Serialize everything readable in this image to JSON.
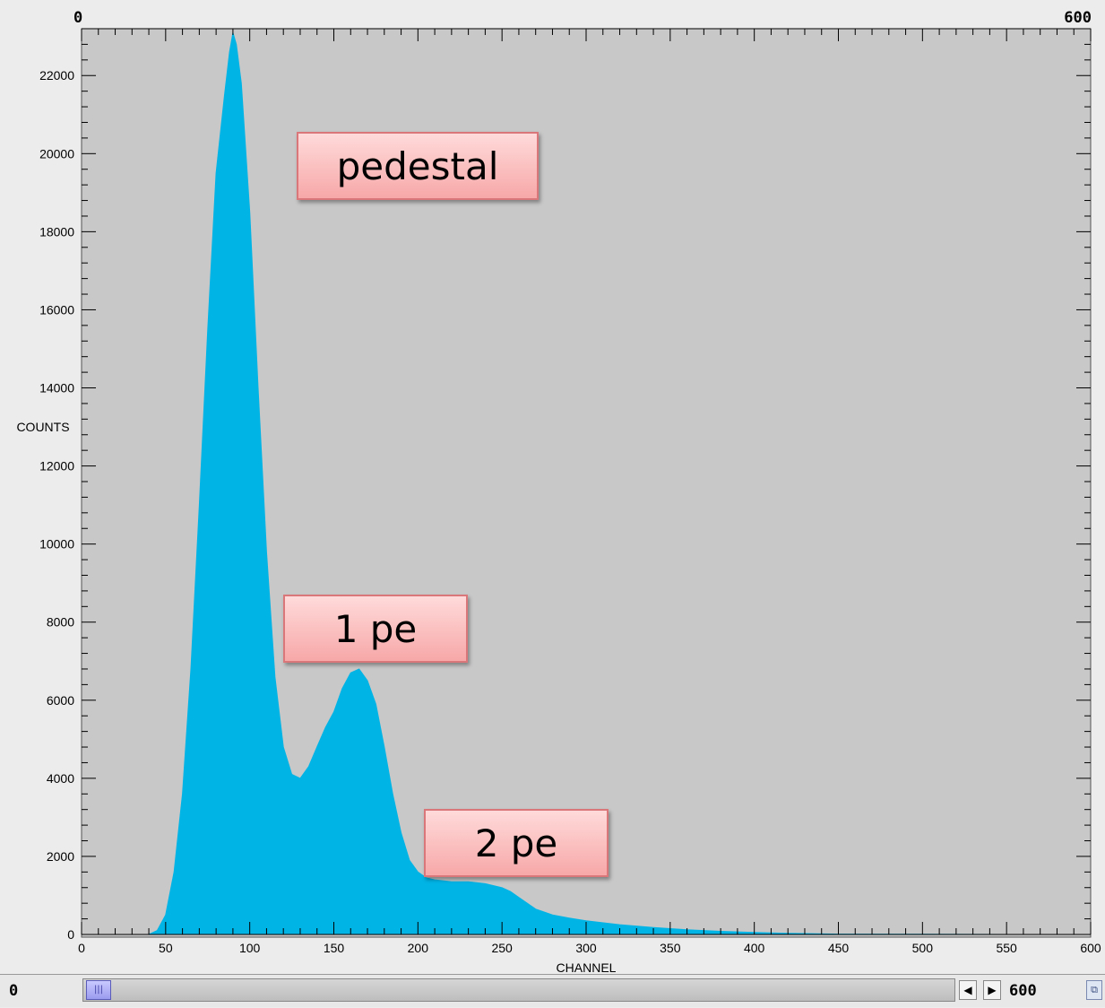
{
  "range": {
    "min_label": "0",
    "max_label": "600"
  },
  "scrollbar": {
    "min_value": "0",
    "max_value": "600"
  },
  "icons": {
    "thumb": "grip-icon",
    "left": "arrow-left-icon",
    "right": "arrow-right-icon",
    "corner": "window-toggle-icon"
  },
  "colors": {
    "fill": "#00b4e6",
    "plot_bg": "#c8c8c8",
    "annotation_bg": "#f9b6b6"
  },
  "annotations": [
    {
      "text": "pedestal",
      "x": 90,
      "y": 19500
    },
    {
      "text": "1 pe",
      "x": 165,
      "y": 7700
    },
    {
      "text": "2 pe",
      "x": 250,
      "y": 2200
    }
  ],
  "chart_data": {
    "type": "area",
    "title": "",
    "xlabel": "CHANNEL",
    "ylabel": "COUNTS",
    "xlim": [
      0,
      600
    ],
    "ylim": [
      0,
      23200
    ],
    "x_ticks": [
      "0",
      "50",
      "100",
      "150",
      "200",
      "250",
      "300",
      "350",
      "400",
      "450",
      "500",
      "550",
      "600"
    ],
    "y_ticks": [
      "0",
      "2000",
      "4000",
      "6000",
      "8000",
      "10000",
      "12000",
      "14000",
      "16000",
      "18000",
      "20000",
      "22000"
    ],
    "grid": false,
    "legend": "none",
    "series": [
      {
        "x": [
          0,
          40,
          45,
          50,
          55,
          60,
          65,
          70,
          75,
          80,
          85,
          88,
          90,
          92,
          95,
          100,
          105,
          110,
          115,
          120,
          125,
          130,
          135,
          140,
          145,
          150,
          155,
          160,
          165,
          170,
          175,
          180,
          185,
          190,
          195,
          200,
          205,
          210,
          220,
          230,
          240,
          250,
          255,
          260,
          265,
          270,
          280,
          290,
          300,
          320,
          340,
          360,
          380,
          400,
          420,
          450,
          500,
          550,
          600
        ],
        "y": [
          0,
          0,
          100,
          500,
          1600,
          3600,
          6800,
          11000,
          15500,
          19500,
          21500,
          22600,
          23100,
          22800,
          21800,
          18500,
          14000,
          9800,
          6600,
          4800,
          4100,
          4000,
          4300,
          4800,
          5300,
          5700,
          6300,
          6700,
          6800,
          6500,
          5900,
          4800,
          3600,
          2600,
          1900,
          1600,
          1450,
          1400,
          1350,
          1350,
          1300,
          1200,
          1100,
          950,
          800,
          650,
          500,
          420,
          350,
          250,
          180,
          120,
          80,
          50,
          30,
          10,
          5,
          0,
          0
        ]
      }
    ]
  }
}
